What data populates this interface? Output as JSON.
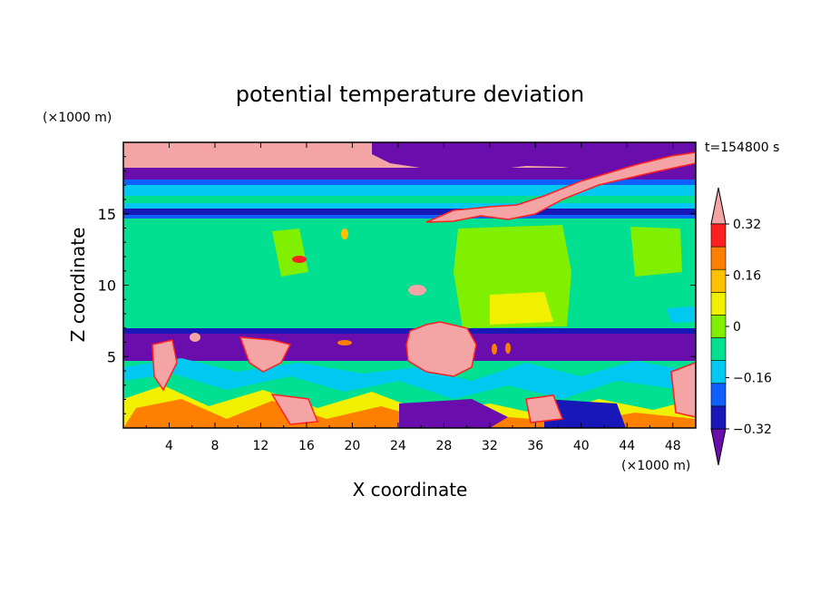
{
  "chart_data": {
    "type": "heatmap",
    "title": "potential temperature deviation",
    "xlabel": "X coordinate",
    "ylabel": "Z coordinate",
    "x_unit": "(×1000 m)",
    "y_unit": "(×1000 m)",
    "time_label": "t=154800 s",
    "xlim": [
      0,
      50
    ],
    "ylim": [
      0,
      20
    ],
    "x_ticks": [
      4,
      8,
      12,
      16,
      20,
      24,
      28,
      32,
      36,
      40,
      44,
      48
    ],
    "y_ticks": [
      5,
      10,
      15
    ],
    "colorbar": {
      "levels": [
        -0.4,
        -0.32,
        -0.24,
        -0.16,
        -0.08,
        0,
        0.08,
        0.16,
        0.24,
        0.32,
        0.4
      ],
      "tick_labels": [
        "0.32",
        "0.16",
        "0",
        "−0.16",
        "−0.32"
      ],
      "tick_values": [
        0.32,
        0.16,
        0,
        -0.16,
        -0.32
      ],
      "colors_low_to_high": [
        "#6a0dad",
        "#1818b8",
        "#1060ff",
        "#00c8f0",
        "#00e090",
        "#80f000",
        "#f0f000",
        "#ffc000",
        "#ff8000",
        "#ff2020",
        "#f4a4a4"
      ],
      "extend": "both"
    },
    "layers": [
      {
        "z_range": [
          18.2,
          20.0
        ],
        "value": 0.45,
        "note": "upper-left pink band"
      },
      {
        "z_range": [
          17.8,
          19.0
        ],
        "value": -0.45,
        "note": "upper purple band"
      },
      {
        "z_range": [
          16.0,
          17.5
        ],
        "value": -0.1
      },
      {
        "z_range": [
          14.8,
          15.3
        ],
        "value": -0.35
      },
      {
        "z_range": [
          7.0,
          14.5
        ],
        "value": 0.0
      },
      {
        "z_range": [
          5.2,
          6.8
        ],
        "value": -0.45
      },
      {
        "z_range": [
          0.0,
          5.0
        ],
        "value": "mixed -0.45 to 0.45"
      }
    ],
    "features": [
      {
        "name": "warm anomaly",
        "x_range": [
          25,
          31
        ],
        "z_range": [
          4.2,
          7.5
        ],
        "value": 0.45
      },
      {
        "name": "warm filament",
        "x_range": [
          23,
          48
        ],
        "z_range": [
          14.8,
          18.0
        ],
        "value": 0.45
      },
      {
        "name": "warm region",
        "x_range": [
          29,
          39
        ],
        "z_range": [
          7.5,
          14.5
        ],
        "value": 0.05
      },
      {
        "name": "warm core",
        "x_range": [
          31,
          36
        ],
        "z_range": [
          7.5,
          9.3
        ],
        "value": 0.18
      }
    ]
  }
}
